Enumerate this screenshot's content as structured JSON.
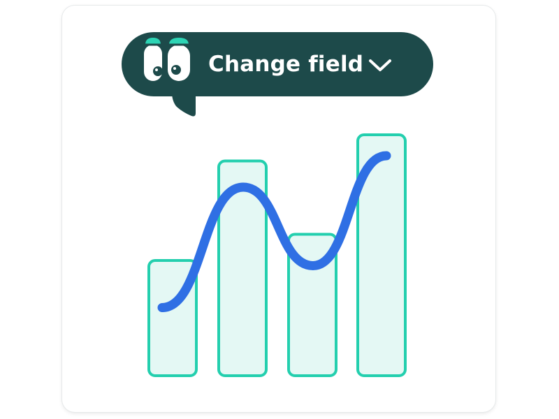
{
  "field_selector": {
    "label": "Change field",
    "icon": "chevron-down-icon",
    "mascot_icon": "cartoon-eyes-icon",
    "bg_color": "#1d4a4a",
    "eye_accent": "#2dd4b4"
  },
  "chart_data": {
    "type": "bar",
    "categories": [
      "",
      "",
      "",
      ""
    ],
    "values": [
      2.2,
      4.1,
      2.7,
      4.6
    ],
    "line_values": [
      1.3,
      3.6,
      2.1,
      4.2
    ],
    "ylim": [
      0,
      4.8
    ],
    "grid": false,
    "title": "",
    "xlabel": "",
    "ylabel": "",
    "bar_stroke": "#23cfae",
    "bar_fill": "#e4f8f4",
    "line_color": "#2f6fe4"
  }
}
